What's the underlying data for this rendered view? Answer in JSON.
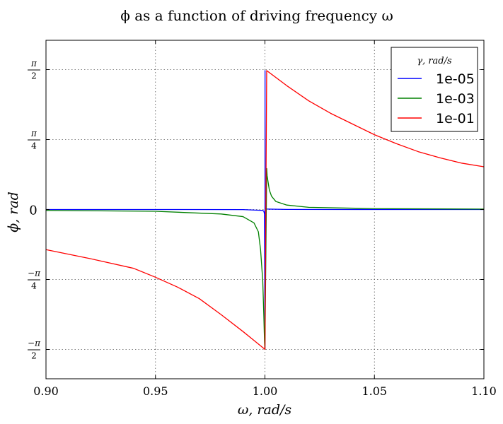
{
  "chart_data": {
    "type": "line",
    "title": "ϕ as a function of driving frequency ω",
    "xlabel": "ω, rad/s",
    "ylabel": "ϕ, rad",
    "xlim": [
      0.9,
      1.1
    ],
    "ylim": [
      -1.9,
      1.9
    ],
    "grid": true,
    "x_ticks": [
      {
        "value": 0.9,
        "label": "0.90"
      },
      {
        "value": 0.95,
        "label": "0.95"
      },
      {
        "value": 1.0,
        "label": "1.00"
      },
      {
        "value": 1.05,
        "label": "1.05"
      },
      {
        "value": 1.1,
        "label": "1.10"
      }
    ],
    "y_ticks": [
      {
        "value": 1.5708,
        "num": "π",
        "den": "2"
      },
      {
        "value": 0.7854,
        "num": "π",
        "den": "4"
      },
      {
        "value": 0,
        "label": "0"
      },
      {
        "value": -0.7854,
        "num": "−π",
        "den": "4"
      },
      {
        "value": -1.5708,
        "num": "−π",
        "den": "2"
      }
    ],
    "legend": {
      "title": "γ, rad/s",
      "placement": "top-right"
    },
    "series": [
      {
        "name": "1e-05",
        "color": "#0000ff",
        "x": [
          0.9,
          0.95,
          0.99,
          0.999,
          0.9995,
          0.9998,
          0.99985,
          0.99995,
          0.99999,
          1.0,
          1.00005,
          1.00006,
          1.0002,
          1.001,
          1.01,
          1.05,
          1.1
        ],
        "y": [
          0,
          0,
          -0.001,
          -0.01,
          -0.02,
          -0.05,
          -0.4,
          -1.2,
          -1.56,
          -1.57,
          1.56,
          0.02,
          0.01,
          0.005,
          0.001,
          0,
          0
        ]
      },
      {
        "name": "1e-03",
        "color": "#008000",
        "x": [
          0.9,
          0.95,
          0.98,
          0.99,
          0.995,
          0.997,
          0.998,
          0.999,
          0.9995,
          0.9998,
          0.99995,
          1.0,
          1.0008,
          1.001,
          1.002,
          1.003,
          1.005,
          1.01,
          1.02,
          1.05,
          1.1
        ],
        "y": [
          -0.01,
          -0.02,
          -0.05,
          -0.08,
          -0.15,
          -0.25,
          -0.45,
          -0.8,
          -1.2,
          -1.48,
          -1.56,
          -1.57,
          0.46,
          0.38,
          0.22,
          0.15,
          0.09,
          0.05,
          0.025,
          0.01,
          0.005
        ]
      },
      {
        "name": "1e-01",
        "color": "#ff0000",
        "x": [
          0.9,
          0.92,
          0.94,
          0.95,
          0.96,
          0.97,
          0.98,
          0.99,
          0.995,
          1.0,
          1.0008,
          1.01,
          1.02,
          1.03,
          1.04,
          1.05,
          1.06,
          1.07,
          1.08,
          1.09,
          1.1
        ],
        "y": [
          -0.45,
          -0.55,
          -0.66,
          -0.76,
          -0.87,
          -1.0,
          -1.18,
          -1.37,
          -1.47,
          -1.57,
          1.56,
          1.39,
          1.22,
          1.08,
          0.96,
          0.84,
          0.74,
          0.65,
          0.58,
          0.52,
          0.48
        ]
      }
    ]
  }
}
